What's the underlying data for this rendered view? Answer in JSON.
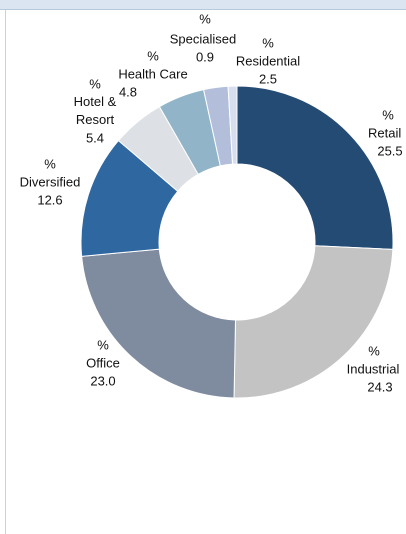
{
  "chart_data": {
    "type": "donut",
    "unit": "%",
    "categories": [
      "Retail",
      "Industrial",
      "Office",
      "Diversified",
      "Hotel & Resort",
      "Health Care",
      "Residential",
      "Specialised"
    ],
    "values": [
      25.5,
      24.3,
      23.0,
      12.6,
      5.4,
      4.8,
      2.5,
      0.9
    ],
    "value_labels": [
      "25.5",
      "24.3",
      "23.0",
      "12.6",
      "5.4",
      "4.8",
      "2.5",
      "0.9"
    ],
    "colors": [
      "#234b73",
      "#c3c3c3",
      "#7f8ca0",
      "#2f67a0",
      "#dde1e6",
      "#92b4c8",
      "#b3bedb",
      "#d7deee"
    ]
  }
}
